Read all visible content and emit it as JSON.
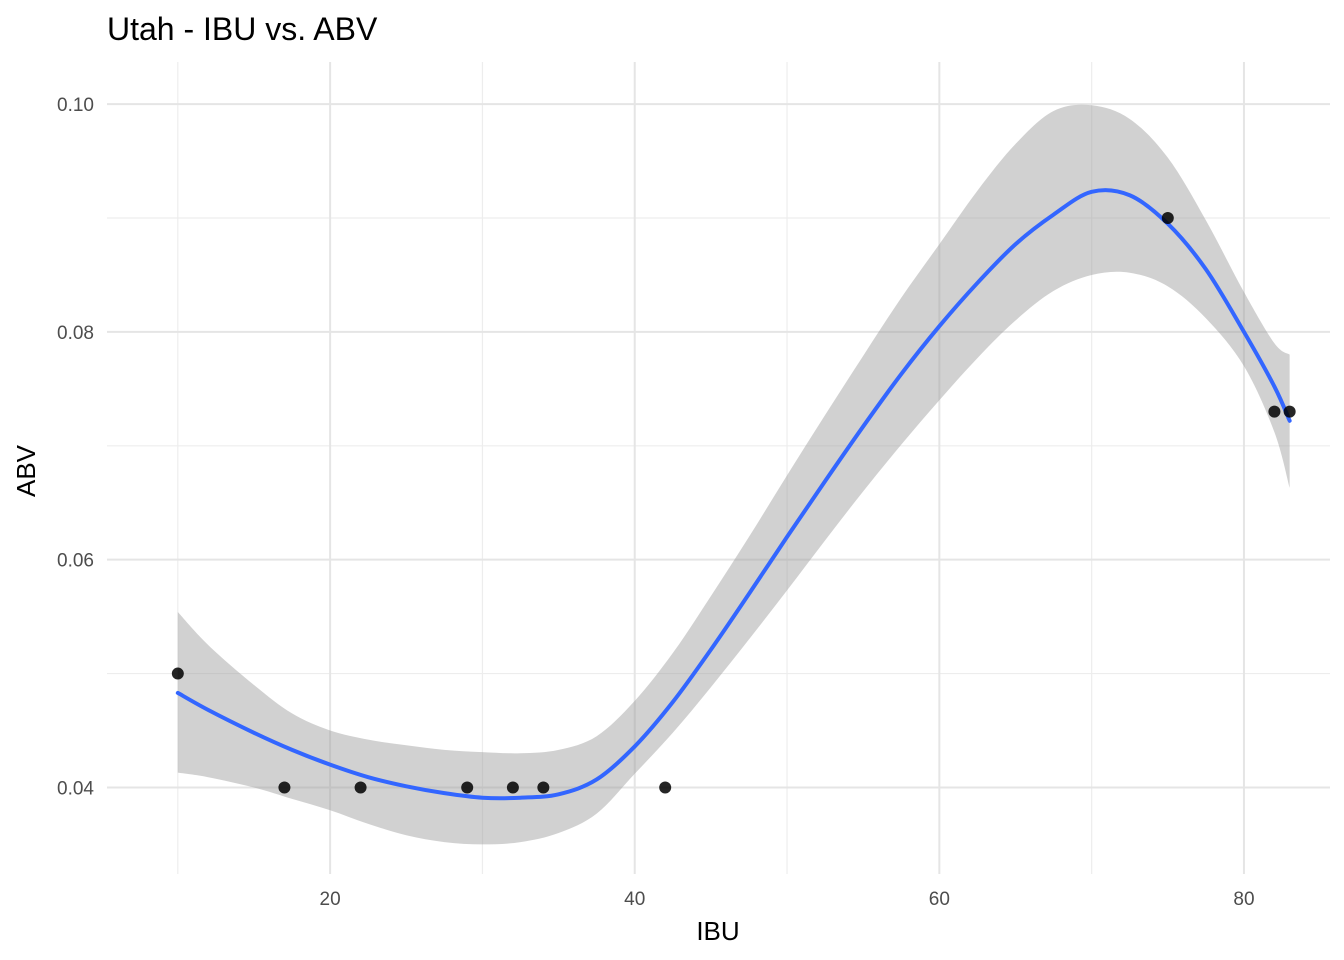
{
  "chart_data": {
    "type": "scatter",
    "title": "Utah - IBU vs. ABV",
    "xlabel": "IBU",
    "ylabel": "ABV",
    "xlim": [
      5.35,
      85.65
    ],
    "ylim": [
      0.0324,
      0.1037
    ],
    "x_ticks": [
      20,
      40,
      60,
      80
    ],
    "x_tick_labels": [
      "20",
      "40",
      "60",
      "80"
    ],
    "y_ticks": [
      0.04,
      0.06,
      0.08,
      0.1
    ],
    "y_tick_labels": [
      "0.04",
      "0.06",
      "0.08",
      "0.10"
    ],
    "grid": true,
    "legend": "none",
    "colors": {
      "smooth_line": "#3366ff",
      "ribbon": "#999999",
      "points": "#000000",
      "grid": "#e5e5e5"
    },
    "points": [
      {
        "x": 10,
        "y": 0.05
      },
      {
        "x": 17,
        "y": 0.04
      },
      {
        "x": 22,
        "y": 0.04
      },
      {
        "x": 29,
        "y": 0.04
      },
      {
        "x": 32,
        "y": 0.04
      },
      {
        "x": 34,
        "y": 0.04
      },
      {
        "x": 42,
        "y": 0.04
      },
      {
        "x": 75,
        "y": 0.09
      },
      {
        "x": 82,
        "y": 0.073
      },
      {
        "x": 83,
        "y": 0.073
      }
    ],
    "smooth": {
      "method": "loess",
      "x": [
        10,
        12,
        15,
        17.5,
        20,
        22.5,
        25,
        27.5,
        30,
        32.5,
        35,
        37.5,
        40,
        42.5,
        45,
        47.5,
        50,
        52.5,
        55,
        57.5,
        60,
        62.5,
        65,
        67.5,
        70,
        72.5,
        75,
        77.5,
        80,
        82,
        83
      ],
      "fit": [
        0.0483,
        0.0468,
        0.0448,
        0.0433,
        0.042,
        0.0409,
        0.0401,
        0.0395,
        0.0391,
        0.0391,
        0.0394,
        0.0407,
        0.0436,
        0.0475,
        0.0521,
        0.057,
        0.062,
        0.0669,
        0.0717,
        0.0763,
        0.0805,
        0.0843,
        0.0877,
        0.0903,
        0.0923,
        0.092,
        0.0895,
        0.0855,
        0.08,
        0.0752,
        0.0722
      ],
      "lower": [
        0.0413,
        0.0409,
        0.04,
        0.039,
        0.038,
        0.0368,
        0.0358,
        0.0352,
        0.035,
        0.0352,
        0.036,
        0.0377,
        0.0412,
        0.0448,
        0.0488,
        0.053,
        0.0573,
        0.0617,
        0.066,
        0.0701,
        0.074,
        0.0777,
        0.081,
        0.0836,
        0.085,
        0.0852,
        0.084,
        0.0812,
        0.077,
        0.0712,
        0.0663
      ],
      "upper": [
        0.0554,
        0.0525,
        0.049,
        0.0465,
        0.045,
        0.0442,
        0.0437,
        0.0433,
        0.0431,
        0.043,
        0.0433,
        0.0445,
        0.0476,
        0.0518,
        0.0568,
        0.062,
        0.0674,
        0.0727,
        0.0779,
        0.083,
        0.0877,
        0.0924,
        0.0965,
        0.0994,
        0.0999,
        0.0987,
        0.0953,
        0.0898,
        0.0835,
        0.079,
        0.078
      ]
    }
  }
}
